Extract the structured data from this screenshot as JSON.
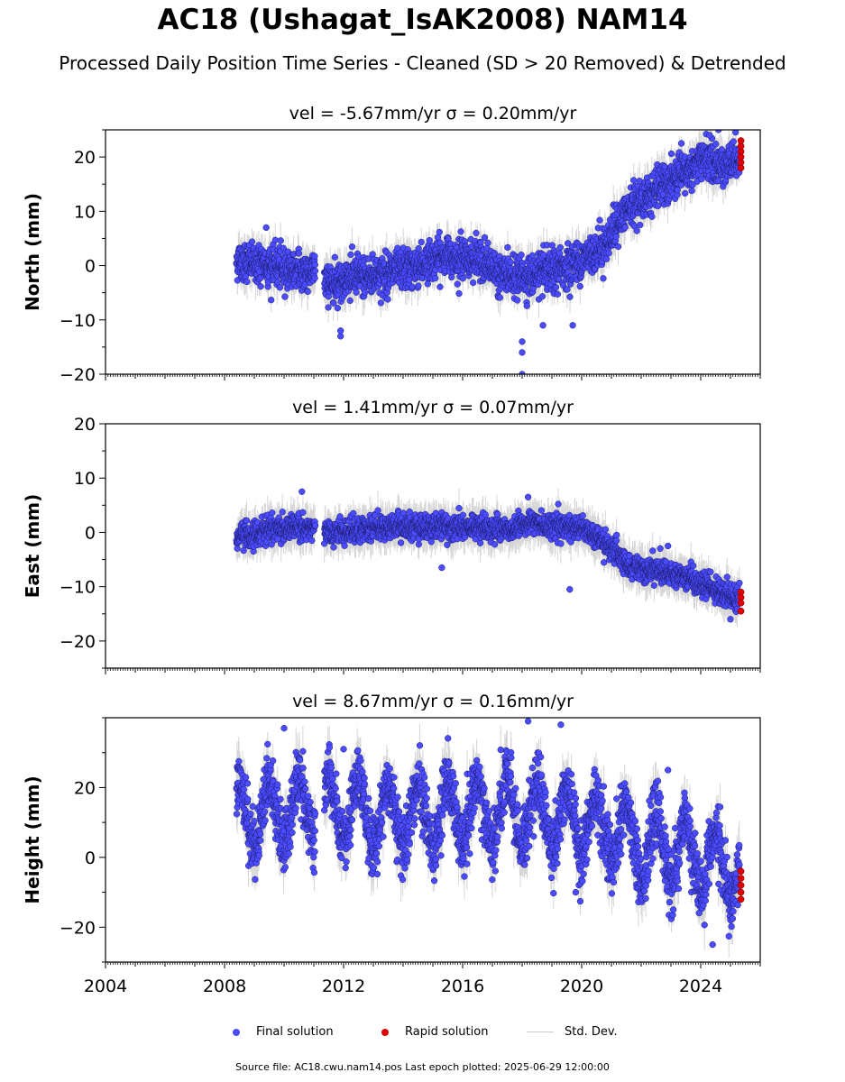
{
  "title": "AC18 (Ushagat_IsAK2008) NAM14",
  "subtitle": "Processed Daily Position Time Series - Cleaned (SD > 20 Removed) & Detrended",
  "source_note": "Source file: AC18.cwu.nam14.pos  Last epoch plotted: 2025-06-29 12:00:00",
  "legend": {
    "final_label": "Final solution",
    "rapid_label": "Rapid solution",
    "std_label": "Std. Dev."
  },
  "colors": {
    "final": "#4b4bff",
    "rapid": "#e00000",
    "std": "#cccccc"
  },
  "chart_data": [
    {
      "type": "scatter",
      "component": "North",
      "title": "vel = -5.67mm/yr   σ = 0.20mm/yr",
      "ylabel": "North (mm)",
      "xlim": [
        2004,
        2026
      ],
      "ylim": [
        -20,
        25
      ],
      "yticks": [
        -20,
        -10,
        0,
        10,
        20
      ],
      "trend_points": [
        [
          2008.5,
          1
        ],
        [
          2009.5,
          0
        ],
        [
          2010.5,
          -1
        ],
        [
          2011.0,
          -1
        ],
        [
          2011.5,
          -3
        ],
        [
          2012.5,
          -2
        ],
        [
          2013.5,
          -1.5
        ],
        [
          2014.5,
          0
        ],
        [
          2015.5,
          2
        ],
        [
          2016.5,
          1
        ],
        [
          2017.5,
          -2
        ],
        [
          2018.3,
          -2
        ],
        [
          2019.0,
          -1
        ],
        [
          2020.0,
          1
        ],
        [
          2020.8,
          4
        ],
        [
          2021.5,
          10
        ],
        [
          2022.5,
          14
        ],
        [
          2023.5,
          17
        ],
        [
          2024.2,
          20
        ],
        [
          2024.6,
          18
        ],
        [
          2025.2,
          20
        ]
      ],
      "outliers": [
        [
          2011.9,
          -13
        ],
        [
          2011.9,
          -12
        ],
        [
          2018.0,
          -20
        ],
        [
          2018.0,
          -14
        ],
        [
          2018.0,
          -16
        ],
        [
          2019.7,
          -11
        ],
        [
          2018.7,
          -11
        ],
        [
          2009.4,
          7
        ],
        [
          2024.3,
          24
        ],
        [
          2024.6,
          25
        ]
      ],
      "rapid_points": [
        [
          2025.35,
          18
        ],
        [
          2025.35,
          19
        ],
        [
          2025.35,
          20
        ],
        [
          2025.35,
          21
        ],
        [
          2025.35,
          22
        ],
        [
          2025.35,
          23
        ]
      ]
    },
    {
      "type": "scatter",
      "component": "East",
      "title": "vel = 1.41mm/yr   σ = 0.07mm/yr",
      "ylabel": "East (mm)",
      "xlim": [
        2004,
        2026
      ],
      "ylim": [
        -25,
        20
      ],
      "yticks": [
        -20,
        -10,
        0,
        10,
        20
      ],
      "trend_points": [
        [
          2008.5,
          -1
        ],
        [
          2009.5,
          0.5
        ],
        [
          2010.5,
          1
        ],
        [
          2011.0,
          1
        ],
        [
          2011.5,
          0
        ],
        [
          2012.5,
          0.5
        ],
        [
          2013.5,
          1
        ],
        [
          2014.5,
          1
        ],
        [
          2015.5,
          1
        ],
        [
          2016.5,
          1
        ],
        [
          2017.5,
          0.5
        ],
        [
          2018.3,
          2
        ],
        [
          2019.0,
          1
        ],
        [
          2020.0,
          1
        ],
        [
          2020.8,
          -2
        ],
        [
          2021.5,
          -6
        ],
        [
          2022.5,
          -7
        ],
        [
          2023.5,
          -8
        ],
        [
          2024.2,
          -10
        ],
        [
          2025.2,
          -12
        ]
      ],
      "outliers": [
        [
          2010.6,
          7.5
        ],
        [
          2018.2,
          6.5
        ],
        [
          2019.6,
          -10.5
        ],
        [
          2015.3,
          -6.5
        ],
        [
          2022.9,
          -2.5
        ],
        [
          2025.0,
          -16
        ]
      ],
      "rapid_points": [
        [
          2025.35,
          -11
        ],
        [
          2025.35,
          -12
        ],
        [
          2025.35,
          -13
        ],
        [
          2025.35,
          -14.5
        ]
      ]
    },
    {
      "type": "scatter",
      "component": "Height",
      "title": "vel = 8.67mm/yr   σ = 0.16mm/yr",
      "ylabel": "Height (mm)",
      "xlim": [
        2004,
        2026
      ],
      "ylim": [
        -30,
        40
      ],
      "yticks": [
        -20,
        0,
        20
      ],
      "xticks": [
        2004,
        2008,
        2012,
        2016,
        2020,
        2024
      ],
      "baseline_points": [
        [
          2008.5,
          12
        ],
        [
          2011.0,
          14
        ],
        [
          2013.0,
          12
        ],
        [
          2016.0,
          13
        ],
        [
          2018.5,
          13
        ],
        [
          2020.0,
          10
        ],
        [
          2021.5,
          5
        ],
        [
          2023.0,
          2
        ],
        [
          2024.5,
          -2
        ],
        [
          2025.2,
          -4
        ]
      ],
      "seasonal_amplitude": 9,
      "outliers": [
        [
          2010.0,
          37
        ],
        [
          2018.2,
          39
        ],
        [
          2019.3,
          38
        ],
        [
          2024.4,
          -25
        ],
        [
          2022.9,
          25
        ],
        [
          2012.0,
          31
        ],
        [
          2019.8,
          -10
        ]
      ],
      "rapid_points": [
        [
          2025.35,
          -4
        ],
        [
          2025.35,
          -6
        ],
        [
          2025.35,
          -8
        ],
        [
          2025.35,
          -10
        ],
        [
          2025.35,
          -12
        ]
      ]
    }
  ]
}
